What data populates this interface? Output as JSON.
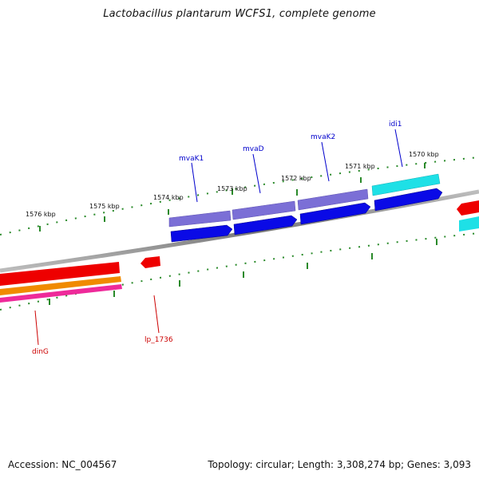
{
  "title": "Lactobacillus plantarum WCFS1, complete genome",
  "footer": {
    "accession": "Accession: NC_004567",
    "stats": "Topology: circular; Length: 3,308,274 bp; Genes: 3,093"
  },
  "ticks": [
    {
      "label": "1576 kbp"
    },
    {
      "label": "1575 kbp"
    },
    {
      "label": "1574 kbp"
    },
    {
      "label": "1573 kbp"
    },
    {
      "label": "1572 kbp"
    },
    {
      "label": "1571 kbp"
    },
    {
      "label": "1570 kbp"
    }
  ],
  "genes": [
    {
      "name": "mvaK1",
      "color": "#0000cc"
    },
    {
      "name": "mvaD",
      "color": "#0000cc"
    },
    {
      "name": "mvaK2",
      "color": "#0000cc"
    },
    {
      "name": "idi1",
      "color": "#0000cc"
    },
    {
      "name": "dinG",
      "color": "#cc0000"
    },
    {
      "name": "lp_1736",
      "color": "#cc0000"
    }
  ],
  "colors": {
    "backbone": "#888888",
    "ticks": "#2a8a2a",
    "cds_outer": "#7b6fd6",
    "gene_forward": "#0a0ae6",
    "cyan_feature": "#1ee0e6",
    "red_feature": "#ee0000",
    "orange_feature": "#f08a00",
    "pink_feature": "#ee2a9a"
  }
}
